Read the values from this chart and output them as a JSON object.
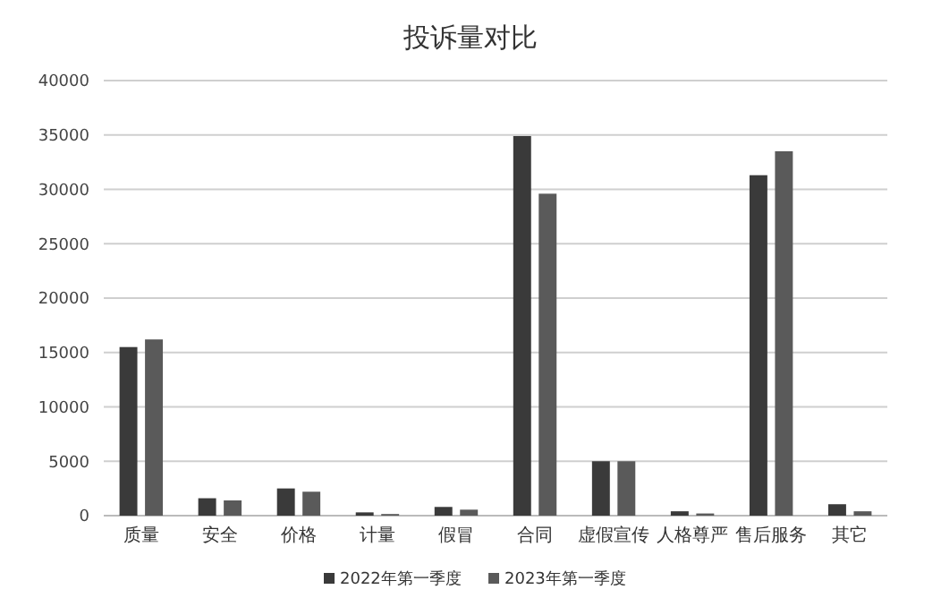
{
  "chart_data": {
    "type": "bar",
    "title": "投诉量对比",
    "categories": [
      "质量",
      "安全",
      "价格",
      "计量",
      "假冒",
      "合同",
      "虚假宣传",
      "人格尊严",
      "售后服务",
      "其它"
    ],
    "series": [
      {
        "name": "2022年第一季度",
        "color": "#3a3a3a",
        "values": [
          15500,
          1600,
          2500,
          300,
          800,
          34900,
          5000,
          400,
          31300,
          1050
        ]
      },
      {
        "name": "2023年第一季度",
        "color": "#5a5a5a",
        "values": [
          16200,
          1400,
          2200,
          150,
          550,
          29600,
          5000,
          200,
          33500,
          400
        ]
      }
    ],
    "ylim": [
      0,
      40000
    ],
    "yticks": [
      0,
      5000,
      10000,
      15000,
      20000,
      25000,
      30000,
      35000,
      40000
    ],
    "grid": "y",
    "legend": "bottom"
  }
}
